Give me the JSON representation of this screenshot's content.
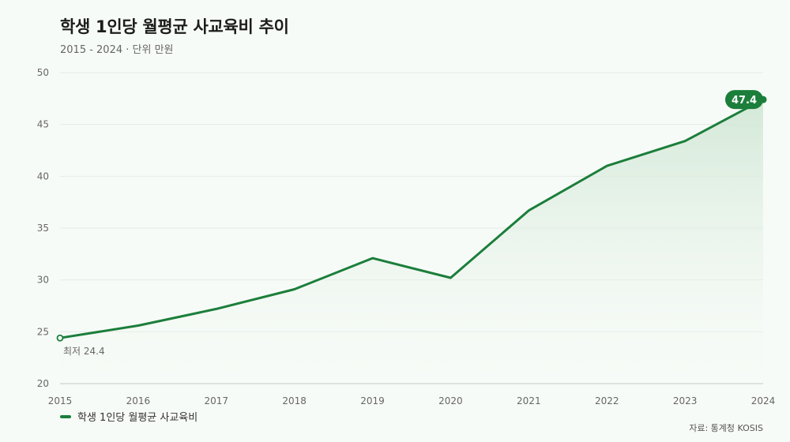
{
  "chart_data": {
    "type": "area",
    "title": "학생 1인당 월평균 사교육비 추이",
    "subtitle": "2015 - 2024 · 단위 만원",
    "xlabel": "",
    "ylabel": "",
    "categories": [
      "2015",
      "2016",
      "2017",
      "2018",
      "2019",
      "2020",
      "2021",
      "2022",
      "2023",
      "2024"
    ],
    "series": [
      {
        "name": "학생 1인당 월평균 사교육비",
        "values": [
          24.4,
          25.6,
          27.2,
          29.1,
          32.1,
          30.2,
          36.7,
          41.0,
          43.4,
          47.4
        ]
      }
    ],
    "ylim": [
      20,
      50
    ],
    "yticks": [
      20,
      25,
      30,
      35,
      40,
      45,
      50
    ],
    "grid": true,
    "legend_position": "bottom-left",
    "annotations": {
      "min_label": "최저 24.4",
      "max_label": "47.4"
    },
    "source": "자료: 통계청 KOSIS",
    "colors": {
      "line": "#1b7e3b",
      "area_top": "#cfe6d4",
      "grid": "#e3ebe4",
      "badge": "#1b7e3b"
    }
  }
}
